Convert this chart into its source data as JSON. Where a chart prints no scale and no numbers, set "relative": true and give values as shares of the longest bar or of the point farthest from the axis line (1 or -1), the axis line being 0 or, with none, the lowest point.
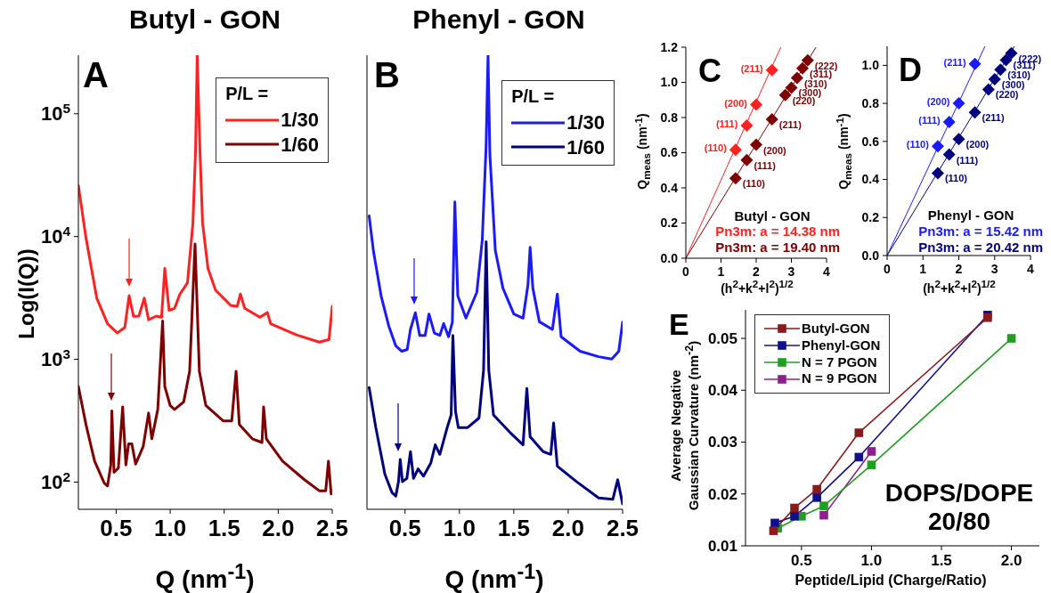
{
  "chart_data": [
    {
      "type": "line",
      "title": "Butyl - GON",
      "xlabel": "Q (nm$^{-1}$)",
      "ylabel": "Log(I(Q))",
      "legend_title": "P/L =",
      "legend": "top right",
      "log": true,
      "annotations": [
        "A"
      ],
      "xlim": [
        0.15,
        2.5
      ],
      "xticks": [
        {
          "value": 0.5,
          "label": "0.5"
        },
        {
          "value": 1,
          "label": "1.0"
        },
        {
          "value": 1.5,
          "label": "1.5"
        },
        {
          "value": 2,
          "label": "2.0"
        },
        {
          "value": 2.5,
          "label": "2.5"
        }
      ],
      "ylim": [
        60,
        300000
      ],
      "yticks": [
        {
          "value": 100,
          "label": "10$^{2}$"
        },
        {
          "value": 1000,
          "label": "10$^{3}$"
        },
        {
          "value": 10000,
          "label": "10$^{4}$"
        },
        {
          "value": 100000,
          "label": "10$^{5}$"
        }
      ],
      "series": [
        {
          "name": "1/30",
          "color": "#ff2020",
          "x": [
            0.15,
            0.22,
            0.32,
            0.42,
            0.51,
            0.58,
            0.62,
            0.66,
            0.71,
            0.76,
            0.8,
            0.87,
            0.92,
            0.95,
            0.99,
            1.04,
            1.09,
            1.16,
            1.21,
            1.235,
            1.25,
            1.275,
            1.3,
            1.35,
            1.42,
            1.56,
            1.62,
            1.65,
            1.69,
            1.83,
            1.9,
            1.93,
            2.17,
            2.38,
            2.47,
            2.5
          ],
          "values": [
            26000,
            9800,
            3150,
            1950,
            1640,
            1820,
            3300,
            2240,
            2250,
            3150,
            2100,
            2250,
            2200,
            5500,
            2500,
            2600,
            3400,
            4200,
            12800,
            51000,
            300000,
            51000,
            12800,
            5500,
            3650,
            2750,
            2700,
            3400,
            2600,
            2200,
            2400,
            1950,
            1580,
            1380,
            1450,
            2700
          ]
        },
        {
          "name": "1/60",
          "color": "#7f0000",
          "x": [
            0.15,
            0.22,
            0.3,
            0.39,
            0.42,
            0.45,
            0.46,
            0.48,
            0.52,
            0.56,
            0.59,
            0.615,
            0.645,
            0.68,
            0.75,
            0.8,
            0.83,
            0.885,
            0.93,
            0.95,
            1.0,
            1.04,
            1.125,
            1.18,
            1.23,
            1.27,
            1.33,
            1.49,
            1.57,
            1.61,
            1.64,
            1.76,
            1.85,
            1.865,
            1.89,
            2.04,
            2.24,
            2.38,
            2.44,
            2.465,
            2.49
          ],
          "values": [
            600,
            295,
            148,
            98,
            93,
            138,
            380,
            120,
            130,
            410,
            138,
            205,
            205,
            140,
            195,
            365,
            225,
            390,
            2050,
            600,
            420,
            390,
            450,
            800,
            8700,
            800,
            420,
            315,
            315,
            800,
            295,
            225,
            210,
            410,
            225,
            148,
            105,
            85,
            85,
            148,
            80
          ]
        }
      ]
    },
    {
      "type": "line",
      "title": "Phenyl - GON",
      "xlabel": "Q (nm$^{-1}$)",
      "legend_title": "P/L =",
      "legend": "top right",
      "relative": true,
      "annotations": [
        "B"
      ],
      "xlim": [
        0.15,
        2.5
      ],
      "xticks": [
        {
          "value": 0.5,
          "label": "0.5"
        },
        {
          "value": 1,
          "label": "1.0"
        },
        {
          "value": 1.5,
          "label": "1.5"
        },
        {
          "value": 2,
          "label": "2.0"
        },
        {
          "value": 2.5,
          "label": "2.5"
        }
      ],
      "series": [
        {
          "name": "1/30",
          "color": "#1a1aff",
          "x": [
            0.17,
            0.21,
            0.28,
            0.35,
            0.415,
            0.47,
            0.52,
            0.55,
            0.595,
            0.635,
            0.685,
            0.72,
            0.77,
            0.82,
            0.855,
            0.9,
            0.935,
            0.958,
            0.985,
            1.06,
            1.16,
            1.21,
            1.245,
            1.263,
            1.28,
            1.33,
            1.4,
            1.5,
            1.585,
            1.63,
            1.65,
            1.675,
            1.735,
            1.855,
            1.9,
            1.935,
            2.11,
            2.28,
            2.4,
            2.465,
            2.5
          ],
          "values": [
            0.646,
            0.568,
            0.47,
            0.404,
            0.36,
            0.348,
            0.352,
            0.396,
            0.433,
            0.383,
            0.383,
            0.43,
            0.388,
            0.383,
            0.409,
            0.38,
            0.412,
            0.677,
            0.47,
            0.421,
            0.478,
            0.593,
            0.798,
            1,
            0.781,
            0.57,
            0.487,
            0.43,
            0.421,
            0.494,
            0.577,
            0.487,
            0.413,
            0.396,
            0.474,
            0.38,
            0.348,
            0.336,
            0.331,
            0.348,
            0.412
          ]
        },
        {
          "name": "1/60",
          "color": "#00007f",
          "x": [
            0.17,
            0.23,
            0.315,
            0.38,
            0.415,
            0.44,
            0.456,
            0.476,
            0.517,
            0.55,
            0.578,
            0.62,
            0.67,
            0.737,
            0.778,
            0.82,
            0.89,
            0.924,
            0.94,
            0.964,
            0.99,
            1.076,
            1.18,
            1.222,
            1.246,
            1.27,
            1.313,
            1.466,
            1.585,
            1.62,
            1.65,
            1.77,
            1.84,
            1.866,
            1.9,
            2.076,
            2.28,
            2.41,
            2.455,
            2.5
          ],
          "values": [
            0.268,
            0.182,
            0.077,
            0.037,
            0.029,
            0.061,
            0.11,
            0.061,
            0.068,
            0.127,
            0.068,
            0.089,
            0.073,
            0.102,
            0.142,
            0.121,
            0.182,
            0.208,
            0.383,
            0.216,
            0.18,
            0.18,
            0.201,
            0.306,
            0.589,
            0.306,
            0.208,
            0.169,
            0.142,
            0.266,
            0.16,
            0.127,
            0.121,
            0.19,
            0.095,
            0.061,
            0.025,
            0.022,
            0.065,
            0.012
          ]
        }
      ]
    },
    {
      "type": "scatter",
      "xlabel": "(h$^{2}$+k$^{2}$+l$^{2}$)$^{1/2}$",
      "ylabel": "Q$_{meas}$ (nm$^{-1}$)",
      "legend": "bottom right",
      "xlim": [
        0,
        4
      ],
      "xticks": [
        0,
        1,
        2,
        3,
        4
      ],
      "ylim": [
        0,
        1.2
      ],
      "yticks": [
        {
          "value": 0,
          "label": "0.0"
        },
        {
          "value": 0.2,
          "label": "0.2"
        },
        {
          "value": 0.4,
          "label": "0.4"
        },
        {
          "value": 0.6,
          "label": "0.6"
        },
        {
          "value": 0.8,
          "label": "0.8"
        },
        {
          "value": 1,
          "label": "1.0"
        },
        {
          "value": 1.2,
          "label": "1.2"
        }
      ],
      "annotations": [
        "C",
        "Butyl - GON",
        {
          "text": "(110)",
          "x": 1.414,
          "y": 0.616
        },
        {
          "text": "(111)",
          "x": 1.732,
          "y": 0.754
        },
        {
          "text": "(200)",
          "x": 2,
          "y": 0.873
        },
        {
          "text": "(211)",
          "x": 2.449,
          "y": 1.07
        },
        {
          "text": "(110)",
          "x": 1.414,
          "y": 0.454
        },
        {
          "text": "(111)",
          "x": 1.732,
          "y": 0.558
        },
        {
          "text": "(200)",
          "x": 2,
          "y": 0.645
        },
        {
          "text": "(211)",
          "x": 2.449,
          "y": 0.79
        },
        {
          "text": "(220)",
          "x": 2.828,
          "y": 0.928
        },
        {
          "text": "(300)",
          "x": 3,
          "y": 0.97
        },
        {
          "text": "(310)",
          "x": 3.162,
          "y": 1.025
        },
        {
          "text": "(311)",
          "x": 3.317,
          "y": 1.08
        },
        {
          "text": "(222)",
          "x": 3.464,
          "y": 1.125
        }
      ],
      "series": [
        {
          "name": "Pn3m: a = 14.38 nm",
          "color": "#ff2020",
          "marker": "diamond",
          "x": [
            1.414,
            1.732,
            2,
            2.449
          ],
          "values": [
            0.616,
            0.754,
            0.873,
            1.07
          ]
        },
        {
          "name": "Pn3m: a = 19.40 nm",
          "color": "#7f0000",
          "marker": "diamond",
          "x": [
            1.414,
            1.732,
            2,
            2.449,
            2.828,
            3,
            3.162,
            3.317,
            3.464
          ],
          "values": [
            0.454,
            0.558,
            0.645,
            0.79,
            0.928,
            0.97,
            1.025,
            1.08,
            1.125
          ]
        },
        {
          "type": "line",
          "color": "#ff2020",
          "marker": "none",
          "x": [
            0,
            2.7
          ],
          "values": [
            0,
            1.2
          ]
        },
        {
          "type": "line",
          "color": "#7f0000",
          "marker": "none",
          "x": [
            0,
            3.7
          ],
          "values": [
            0,
            1.2
          ]
        }
      ]
    },
    {
      "type": "scatter",
      "xlabel": "(h$^{2}$+k$^{2}$+l$^{2}$)$^{1/2}$",
      "ylabel": "Q$_{meas}$ (nm$^{-1}$)",
      "legend": "bottom right",
      "xlim": [
        0,
        4
      ],
      "xticks": [
        0,
        1,
        2,
        3,
        4
      ],
      "ylim": [
        0,
        1.1
      ],
      "yticks": [
        {
          "value": 0,
          "label": "0.0"
        },
        {
          "value": 0.2,
          "label": "0.2"
        },
        {
          "value": 0.4,
          "label": "0.4"
        },
        {
          "value": 0.6,
          "label": "0.6"
        },
        {
          "value": 0.8,
          "label": "0.8"
        },
        {
          "value": 1,
          "label": "1.0"
        }
      ],
      "annotations": [
        "D",
        "Phenyl - GON",
        {
          "text": "(110)",
          "x": 1.414,
          "y": 0.575
        },
        {
          "text": "(111)",
          "x": 1.732,
          "y": 0.702
        },
        {
          "text": "(200)",
          "x": 2,
          "y": 0.801
        },
        {
          "text": "(211)",
          "x": 2.449,
          "y": 1.008
        },
        {
          "text": "(110)",
          "x": 1.414,
          "y": 0.433
        },
        {
          "text": "(111)",
          "x": 1.732,
          "y": 0.531
        },
        {
          "text": "(200)",
          "x": 2,
          "y": 0.612
        },
        {
          "text": "(211)",
          "x": 2.449,
          "y": 0.753
        },
        {
          "text": "(220)",
          "x": 2.828,
          "y": 0.873
        },
        {
          "text": "(300)",
          "x": 3,
          "y": 0.927
        },
        {
          "text": "(310)",
          "x": 3.162,
          "y": 0.977
        },
        {
          "text": "(311)",
          "x": 3.317,
          "y": 1.028
        },
        {
          "text": "(222)",
          "x": 3.464,
          "y": 1.064
        }
      ],
      "series": [
        {
          "name": "Pn3m: a = 15.42 nm",
          "color": "#1a1aff",
          "marker": "diamond",
          "x": [
            1.414,
            1.732,
            2,
            2.449
          ],
          "values": [
            0.575,
            0.702,
            0.801,
            1.008
          ]
        },
        {
          "name": "Pn3m: a = 20.42 nm",
          "color": "#00007f",
          "marker": "diamond",
          "x": [
            1.414,
            1.732,
            2,
            2.449,
            2.828,
            3,
            3.162,
            3.317,
            3.464
          ],
          "values": [
            0.433,
            0.531,
            0.612,
            0.753,
            0.873,
            0.927,
            0.977,
            1.028,
            1.064
          ]
        },
        {
          "type": "line",
          "color": "#1a1aff",
          "marker": "none",
          "x": [
            0,
            2.73
          ],
          "values": [
            0,
            1.1
          ]
        },
        {
          "type": "line",
          "color": "#00007f",
          "marker": "none",
          "x": [
            0,
            3.55
          ],
          "values": [
            0,
            1.1
          ]
        }
      ]
    },
    {
      "type": "line",
      "xlabel": "Peptide/Lipid (Charge/Ratio)",
      "ylabel": "Average Negative\nGaussian Curvature (nm$^{-2}$)",
      "legend": "top left",
      "marker": "square",
      "annotations": [
        "E",
        "DOPS/DOPE\n20/80"
      ],
      "xlim": [
        0.1,
        2.2
      ],
      "xticks": [
        {
          "value": 0.5,
          "label": "0.5"
        },
        {
          "value": 1,
          "label": "1.0"
        },
        {
          "value": 1.5,
          "label": "1.5"
        },
        {
          "value": 2,
          "label": "2.0"
        }
      ],
      "ylim": [
        0.01,
        0.0555
      ],
      "yticks": [
        0.01,
        0.02,
        0.03,
        0.04,
        0.05
      ],
      "series": [
        {
          "name": "Butyl-GON",
          "color": "#8b1a1a",
          "x": [
            0.3,
            0.45,
            0.61,
            0.91,
            1.83
          ],
          "values": [
            0.0129,
            0.0173,
            0.0209,
            0.0318,
            0.054
          ]
        },
        {
          "name": "Phenyl-GON",
          "color": "#10108c",
          "x": [
            0.31,
            0.45,
            0.61,
            0.91,
            1.83
          ],
          "values": [
            0.0144,
            0.0157,
            0.0193,
            0.0271,
            0.0545
          ]
        },
        {
          "name": "N = 7 PGON",
          "color": "#1f9e1f",
          "x": [
            0.33,
            0.5,
            0.66,
            1.0,
            2.0
          ],
          "values": [
            0.0134,
            0.0157,
            0.0177,
            0.0256,
            0.05
          ]
        },
        {
          "name": "N = 9 PGON",
          "color": "#8e1f8e",
          "x": [
            0.66,
            1.0
          ],
          "values": [
            0.0159,
            0.0282
          ]
        }
      ]
    }
  ]
}
